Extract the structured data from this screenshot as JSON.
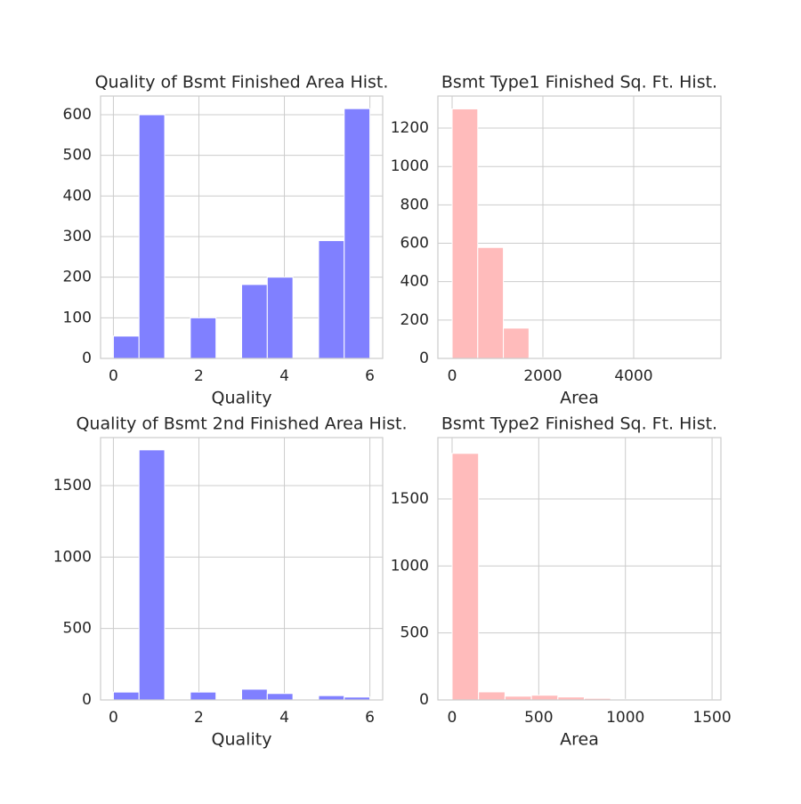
{
  "chart_data": [
    {
      "type": "histogram",
      "title": "Quality of Bsmt Finished Area Hist.",
      "xlabel": "Quality",
      "color": "#8080ff",
      "bins": [
        0,
        0.6,
        1.2,
        1.8,
        2.4,
        3.0,
        3.6,
        4.2,
        4.8,
        5.4,
        6.0
      ],
      "counts": [
        55,
        600,
        0,
        100,
        0,
        182,
        200,
        0,
        290,
        615
      ],
      "xlim": [
        -0.3,
        6.3
      ],
      "xticks": [
        0,
        2,
        4,
        6
      ],
      "ylim": [
        0,
        646
      ],
      "yticks": [
        0,
        100,
        200,
        300,
        400,
        500,
        600
      ],
      "grid": true
    },
    {
      "type": "histogram",
      "title": "Bsmt Type1 Finished Sq. Ft. Hist.",
      "xlabel": "Area",
      "color": "#ffbbbb",
      "bins": [
        0,
        564.4,
        1128.8,
        1693.2,
        2257.6,
        2822,
        3386.4,
        3950.8,
        4515.2,
        5079.6,
        5644
      ],
      "counts": [
        1300,
        578,
        158,
        4,
        0,
        0,
        0,
        0,
        0,
        1
      ],
      "xlim": [
        -314,
        5922
      ],
      "xticks": [
        0,
        2000,
        4000
      ],
      "ylim": [
        0,
        1367
      ],
      "yticks": [
        0,
        200,
        400,
        600,
        800,
        1000,
        1200
      ],
      "grid": true
    },
    {
      "type": "histogram",
      "title": "Quality of Bsmt 2nd Finished Area Hist.",
      "xlabel": "Quality",
      "color": "#8080ff",
      "bins": [
        0,
        0.6,
        1.2,
        1.8,
        2.4,
        3.0,
        3.6,
        4.2,
        4.8,
        5.4,
        6.0
      ],
      "counts": [
        55,
        1750,
        0,
        55,
        0,
        75,
        45,
        0,
        30,
        20
      ],
      "xlim": [
        -0.3,
        6.3
      ],
      "xticks": [
        0,
        2,
        4,
        6
      ],
      "ylim": [
        0,
        1836
      ],
      "yticks": [
        0,
        500,
        1000,
        1500
      ],
      "grid": true
    },
    {
      "type": "histogram",
      "title": "Bsmt Type2 Finished Sq. Ft. Hist.",
      "xlabel": "Area",
      "color": "#ffbbbb",
      "bins": [
        0,
        152.6,
        305.2,
        457.8,
        610.4,
        763,
        915.6,
        1068.2,
        1220.8,
        1373.4,
        1526
      ],
      "counts": [
        1840,
        60,
        28,
        35,
        22,
        12,
        5,
        3,
        2,
        1
      ],
      "xlim": [
        -82,
        1551
      ],
      "xticks": [
        0,
        500,
        1000,
        1500
      ],
      "ylim": [
        0,
        1958
      ],
      "yticks": [
        0,
        500,
        1000,
        1500
      ],
      "grid": true
    }
  ]
}
